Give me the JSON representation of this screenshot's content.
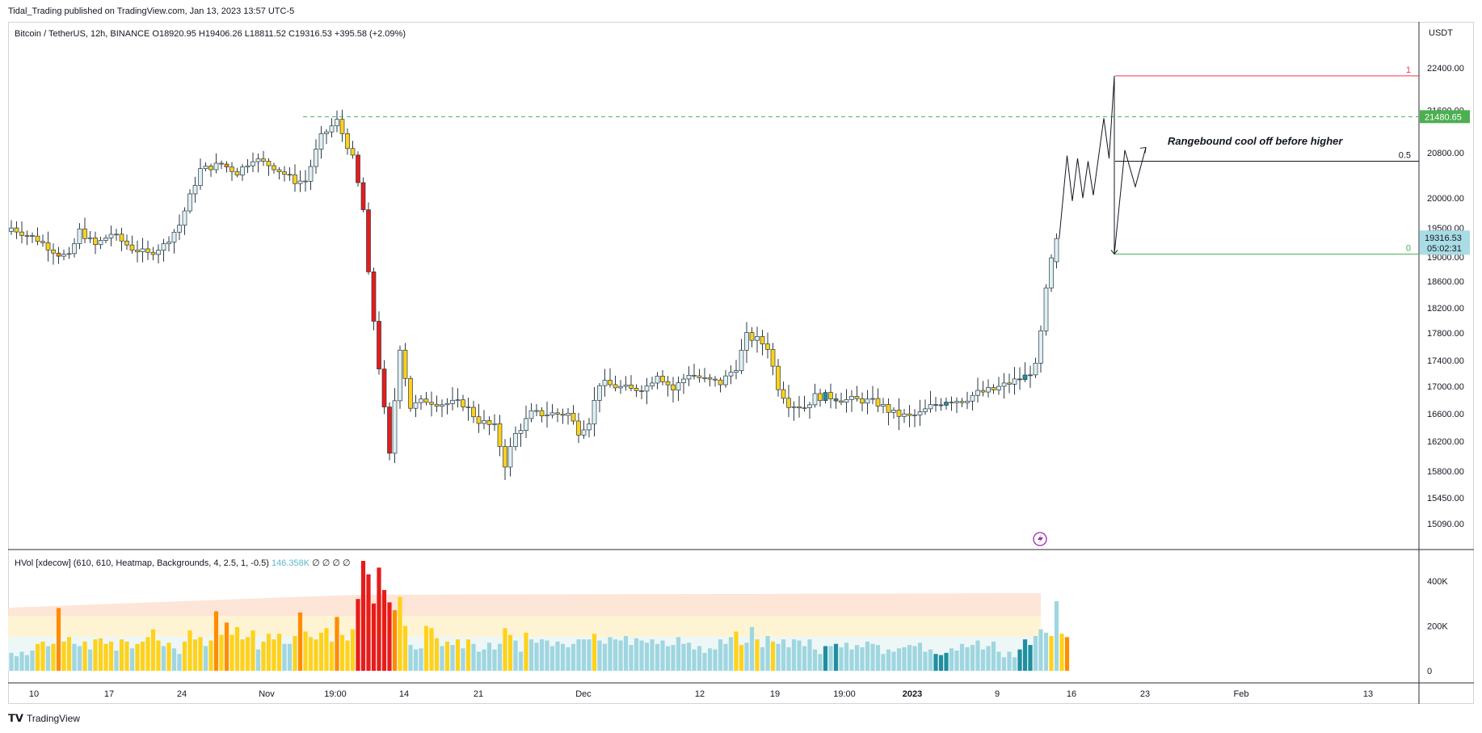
{
  "publisher": "Tidal_Trading published on TradingView.com, Jan 13, 2023 13:57 UTC-5",
  "legend": {
    "symbol": "Bitcoin / TetherUS, 12h, BINANCE",
    "open": "O18920.95",
    "high": "H19406.26",
    "low": "L18811.52",
    "close": "C19316.53",
    "change": "+395.58 (+2.09%)"
  },
  "indicator": {
    "label": "HVol [xdecow] (610, 610, Heatmap, Backgrounds, 4, 2.5, 1, -0.5)",
    "value": "146.358K",
    "extras": "∅ ∅ ∅ ∅"
  },
  "currency": "USDT",
  "annotation": "Rangebound cool off before higher",
  "fib": {
    "level_1": "1",
    "level_05": "0.5",
    "level_0": "0"
  },
  "price_badges": {
    "dashed": "21480.65",
    "current": "19316.53",
    "countdown": "05:02:31"
  },
  "footer": {
    "brand": "TradingView"
  },
  "colors": {
    "up": "#f0f3f5",
    "bull_edge": "#2a3a44",
    "heat_yellow": "#ffd21a",
    "heat_orange": "#ff8c00",
    "heat_red": "#e81b1b",
    "heat_blue": "#9fd6e0",
    "heat_teal": "#1f8fa0",
    "green_line": "#4caf50",
    "red_line": "#f23645",
    "badge_green": "#4caf50",
    "badge_blue": "#a9dce4"
  },
  "chart_data": [
    {
      "type": "candlestick",
      "title": "",
      "y_ticks": [
        22400,
        21600,
        20800,
        20000,
        19500,
        19000,
        18600,
        18200,
        17800,
        17400,
        17000,
        16600,
        16200,
        15800,
        15450,
        15090
      ],
      "y_tick_labels": [
        "22400.00",
        "21600.00",
        "20800.00",
        "20000.00",
        "19500.00",
        "19000.00",
        "18600.00",
        "18200.00",
        "17800.00",
        "17400.00",
        "17000.00",
        "16600.00",
        "16200.00",
        "15800.00",
        "15450.00",
        "15090.00"
      ],
      "x_tick_labels": [
        "10",
        "17",
        "24",
        "Nov",
        "19:00",
        "14",
        "21",
        "Dec",
        "12",
        "19",
        "19:00",
        "2023",
        "9",
        "16",
        "23",
        "Feb",
        "13"
      ],
      "anchors": [
        [
          0,
          19500
        ],
        [
          5,
          19300
        ],
        [
          9,
          19050
        ],
        [
          11,
          19000
        ],
        [
          13,
          19450
        ],
        [
          16,
          19200
        ],
        [
          19,
          19400
        ],
        [
          23,
          19150
        ],
        [
          26,
          19050
        ],
        [
          29,
          19200
        ],
        [
          32,
          19550
        ],
        [
          36,
          20500
        ],
        [
          40,
          20600
        ],
        [
          43,
          20450
        ],
        [
          46,
          20700
        ],
        [
          50,
          20550
        ],
        [
          54,
          20300
        ],
        [
          56,
          20300
        ],
        [
          59,
          21100
        ],
        [
          62,
          21400
        ],
        [
          65,
          20700
        ],
        [
          67,
          19800
        ],
        [
          68,
          18700
        ],
        [
          70,
          17300
        ],
        [
          72,
          16000
        ],
        [
          74,
          17600
        ],
        [
          76,
          16700
        ],
        [
          79,
          16800
        ],
        [
          82,
          16750
        ],
        [
          86,
          16750
        ],
        [
          89,
          16500
        ],
        [
          92,
          16400
        ],
        [
          94,
          15900
        ],
        [
          96,
          16300
        ],
        [
          99,
          16600
        ],
        [
          103,
          16600
        ],
        [
          106,
          16600
        ],
        [
          108,
          16350
        ],
        [
          110,
          16500
        ],
        [
          112,
          17050
        ],
        [
          115,
          17000
        ],
        [
          118,
          16950
        ],
        [
          121,
          17000
        ],
        [
          123,
          17200
        ],
        [
          126,
          16950
        ],
        [
          129,
          17200
        ],
        [
          132,
          17100
        ],
        [
          135,
          17050
        ],
        [
          138,
          17300
        ],
        [
          140,
          17750
        ],
        [
          142,
          17700
        ],
        [
          144,
          17600
        ],
        [
          146,
          17000
        ],
        [
          148,
          16750
        ],
        [
          151,
          16700
        ],
        [
          153,
          16850
        ],
        [
          156,
          16850
        ],
        [
          159,
          16800
        ],
        [
          162,
          16800
        ],
        [
          165,
          16750
        ],
        [
          168,
          16600
        ],
        [
          171,
          16550
        ],
        [
          173,
          16600
        ],
        [
          175,
          16700
        ],
        [
          178,
          16800
        ],
        [
          181,
          16800
        ],
        [
          184,
          16900
        ],
        [
          187,
          16950
        ],
        [
          190,
          17050
        ],
        [
          193,
          17150
        ],
        [
          195,
          17300
        ],
        [
          196,
          17800
        ],
        [
          197,
          18450
        ],
        [
          198,
          18950
        ],
        [
          199,
          19316
        ]
      ],
      "projection_path": [
        [
          199.5,
          19316
        ],
        [
          201,
          20750
        ],
        [
          202,
          19950
        ],
        [
          203,
          20700
        ],
        [
          204,
          20000
        ],
        [
          205,
          20650
        ],
        [
          206,
          20050
        ],
        [
          208,
          21450
        ],
        [
          209,
          20700
        ],
        [
          210,
          22250
        ],
        [
          210,
          19050
        ],
        [
          212,
          20850
        ],
        [
          214,
          20200
        ],
        [
          216,
          20900
        ]
      ],
      "fib_levels": {
        "1": 22250,
        "0.5": 20650,
        "0": 19050
      },
      "horizontal_line": 21480.65,
      "current_price": 19316.53
    },
    {
      "type": "bar",
      "title": "",
      "y_ticks": [
        400000,
        200000,
        0
      ],
      "y_tick_labels": [
        "400K",
        "200K",
        "0"
      ],
      "values": [
        80000,
        65000,
        85000,
        70000,
        90000,
        120000,
        130000,
        110000,
        120000,
        280000,
        130000,
        150000,
        120000,
        110000,
        130000,
        95000,
        140000,
        145000,
        120000,
        130000,
        90000,
        140000,
        130000,
        100000,
        120000,
        130000,
        150000,
        185000,
        135000,
        110000,
        125000,
        100000,
        75000,
        130000,
        180000,
        140000,
        150000,
        110000,
        135000,
        265000,
        160000,
        215000,
        160000,
        195000,
        140000,
        150000,
        180000,
        95000,
        130000,
        165000,
        140000,
        165000,
        120000,
        120000,
        155000,
        260000,
        175000,
        150000,
        140000,
        170000,
        190000,
        130000,
        240000,
        160000,
        135000,
        185000,
        320000,
        490000,
        430000,
        300000,
        460000,
        360000,
        305000,
        270000,
        330000,
        200000,
        115000,
        95000,
        100000,
        200000,
        190000,
        145000,
        110000,
        130000,
        115000,
        140000,
        100000,
        140000,
        120000,
        85000,
        95000,
        125000,
        95000,
        120000,
        190000,
        160000,
        135000,
        85000,
        170000,
        140000,
        125000,
        140000,
        135000,
        110000,
        130000,
        120000,
        105000,
        120000,
        140000,
        140000,
        140000,
        165000,
        135000,
        120000,
        150000,
        140000,
        135000,
        155000,
        115000,
        145000,
        135000,
        125000,
        140000,
        120000,
        135000,
        110000,
        115000,
        150000,
        120000,
        125000,
        95000,
        110000,
        80000,
        100000,
        95000,
        140000,
        120000,
        150000,
        175000,
        115000,
        125000,
        195000,
        140000,
        105000,
        155000,
        130000,
        120000,
        140000,
        105000,
        140000,
        135000,
        110000,
        140000,
        95000,
        75000,
        110000,
        110000,
        120000,
        105000,
        125000,
        95000,
        115000,
        105000,
        130000,
        120000,
        115000,
        75000,
        95000,
        85000,
        100000,
        105000,
        115000,
        110000,
        125000,
        85000,
        95000,
        75000,
        70000,
        80000,
        100000,
        90000,
        120000,
        105000,
        115000,
        135000,
        95000,
        110000,
        130000,
        85000,
        60000,
        85000,
        60000,
        95000,
        140000,
        115000,
        155000,
        185000,
        170000,
        155000,
        310000,
        165000,
        150000
      ],
      "heat_levels": [
        0,
        0,
        0,
        0,
        0,
        1,
        1,
        0,
        1,
        2,
        1,
        1,
        0,
        0,
        1,
        0,
        1,
        1,
        1,
        1,
        0,
        1,
        1,
        0,
        1,
        1,
        1,
        1,
        1,
        0,
        1,
        0,
        0,
        1,
        1,
        1,
        1,
        0,
        1,
        2,
        1,
        2,
        1,
        1,
        1,
        1,
        1,
        0,
        1,
        1,
        1,
        1,
        0,
        0,
        1,
        2,
        1,
        1,
        1,
        1,
        1,
        1,
        2,
        1,
        1,
        1,
        3,
        3,
        3,
        3,
        3,
        3,
        3,
        2,
        1,
        1,
        0,
        0,
        0,
        1,
        1,
        1,
        0,
        1,
        0,
        1,
        0,
        1,
        0,
        0,
        0,
        0,
        0,
        0,
        1,
        1,
        0,
        0,
        1,
        0,
        0,
        0,
        0,
        0,
        0,
        0,
        0,
        0,
        0,
        0,
        0,
        1,
        0,
        0,
        0,
        0,
        0,
        0,
        0,
        0,
        0,
        0,
        0,
        0,
        0,
        0,
        0,
        0,
        0,
        0,
        0,
        0,
        0,
        0,
        0,
        0,
        0,
        0,
        1,
        1,
        0,
        0,
        1,
        0,
        0,
        1,
        0,
        0,
        0,
        0,
        0,
        0,
        0,
        0,
        0,
        4,
        0,
        4,
        0,
        0,
        0,
        0,
        0,
        0,
        0,
        0,
        0,
        0,
        0,
        0,
        0,
        0,
        0,
        0,
        0,
        0,
        4,
        4,
        4,
        0,
        0,
        0,
        0,
        0,
        0,
        0,
        0,
        0,
        0,
        0,
        0,
        0,
        4,
        4,
        4,
        0,
        0,
        0,
        1,
        0,
        1,
        2,
        1,
        0
      ]
    }
  ]
}
